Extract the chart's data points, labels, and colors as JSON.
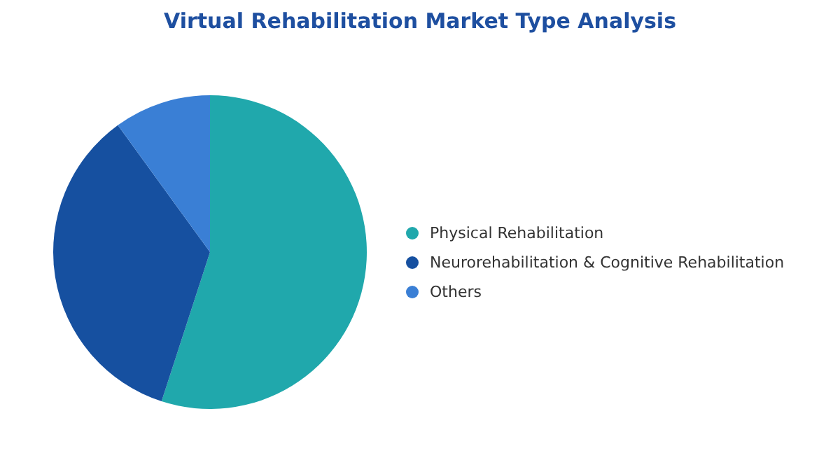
{
  "chart_data": {
    "type": "pie",
    "title": "Virtual Rehabilitation Market Type Analysis",
    "categories": [
      "Physical Rehabilitation",
      "Neurorehabilitation & Cognitive Rehabilitation",
      "Others"
    ],
    "values": [
      55,
      35,
      10
    ],
    "colors": [
      "#20a8ac",
      "#1650a0",
      "#3a7fd5"
    ],
    "legend": "right"
  }
}
